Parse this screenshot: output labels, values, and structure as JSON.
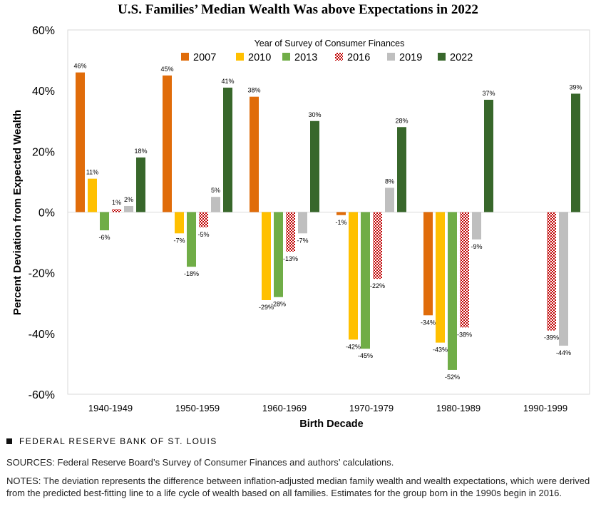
{
  "title": "U.S. Families’ Median Wealth Was above Expectations in 2022",
  "chart_data": {
    "type": "bar",
    "xlabel": "Birth Decade",
    "ylabel": "Percent Deviation from Expected Wealth",
    "ylim": [
      -60,
      60
    ],
    "yticks": [
      "60%",
      "40%",
      "20%",
      "0%",
      "-20%",
      "-40%",
      "-60%"
    ],
    "ytick_values": [
      60,
      40,
      20,
      0,
      -20,
      -40,
      -60
    ],
    "legend_title": "Year of Survey of Consumer Finances",
    "legend_position": "top",
    "categories": [
      "1940-1949",
      "1950-1959",
      "1960-1969",
      "1970-1979",
      "1980-1989",
      "1990-1999"
    ],
    "series": [
      {
        "name": "2007",
        "color": "#e06c0a",
        "values": [
          46,
          45,
          38,
          -1,
          -34,
          null
        ],
        "labels": [
          "46%",
          "45%",
          "38%",
          "-1%",
          "-34%",
          null
        ]
      },
      {
        "name": "2010",
        "color": "#ffc000",
        "values": [
          11,
          -7,
          -29,
          -42,
          -43,
          null
        ],
        "labels": [
          "11%",
          "-7%",
          "-29%",
          "-42%",
          "-43%",
          null
        ]
      },
      {
        "name": "2013",
        "color": "#70ad47",
        "values": [
          -6,
          -18,
          -28,
          -45,
          -52,
          null
        ],
        "labels": [
          "-6%",
          "-18%",
          "-28%",
          "-45%",
          "-52%",
          null
        ]
      },
      {
        "name": "2016",
        "color": "#c00000",
        "pattern": "checker",
        "values": [
          1,
          -5,
          -13,
          -22,
          -38,
          -39
        ],
        "labels": [
          "1%",
          "-5%",
          "-13%",
          "-22%",
          "-38%",
          "-39%"
        ]
      },
      {
        "name": "2019",
        "color": "#bfbfbf",
        "values": [
          2,
          5,
          -7,
          8,
          -9,
          -44
        ],
        "labels": [
          "2%",
          "5%",
          "-7%",
          "8%",
          "-9%",
          "-44%"
        ]
      },
      {
        "name": "2022",
        "color": "#38672b",
        "values": [
          18,
          41,
          30,
          28,
          37,
          39
        ],
        "labels": [
          "18%",
          "41%",
          "30%",
          "28%",
          "37%",
          "39%"
        ]
      }
    ]
  },
  "footer": {
    "brand": "FEDERAL RESERVE BANK OF ST. LOUIS",
    "sources": "SOURCES: Federal Reserve Board’s Survey of Consumer Finances and authors’ calculations.",
    "notes": "NOTES: The deviation represents the difference between inflation-adjusted median family wealth and wealth expectations, which were derived from the predicted best-fitting line to a life cycle of wealth based on all families. Estimates for the group born in the 1990s begin in 2016."
  }
}
